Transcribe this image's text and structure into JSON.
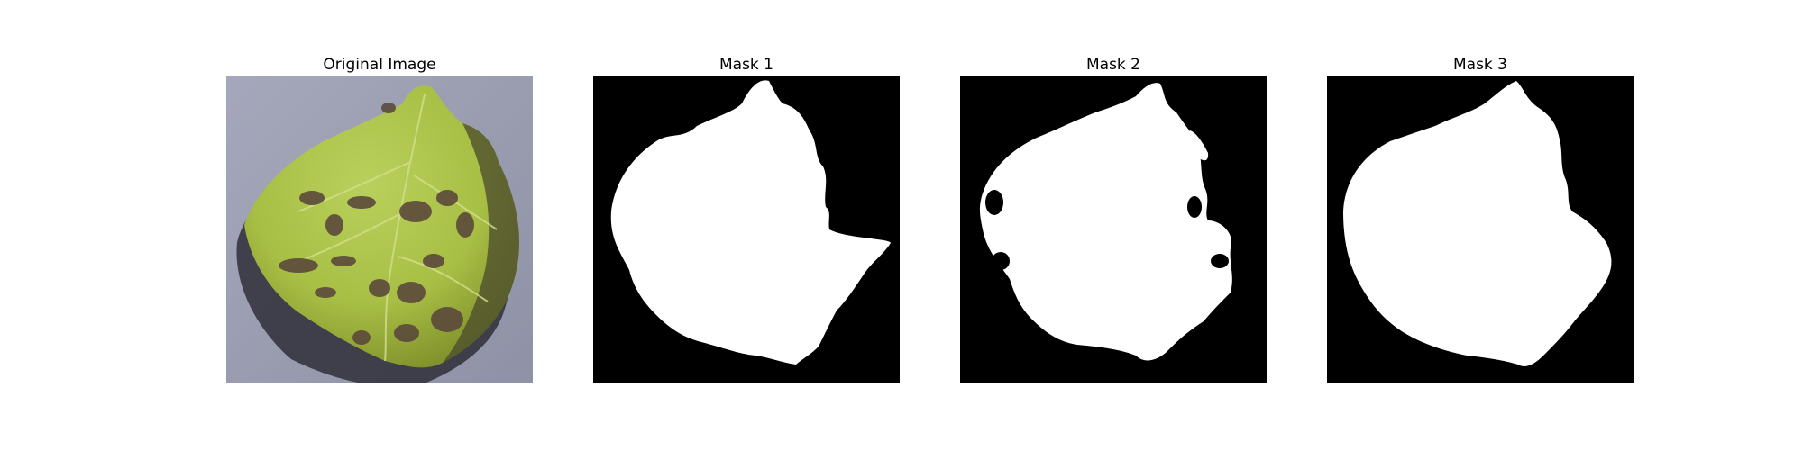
{
  "figure": {
    "panels": [
      {
        "title": "Original Image"
      },
      {
        "title": "Mask 1"
      },
      {
        "title": "Mask 2"
      },
      {
        "title": "Mask 3"
      }
    ]
  },
  "colors": {
    "background_photo": "#9fa0b4",
    "leaf_light": "#b7cc55",
    "leaf_mid": "#9fb43c",
    "leaf_edge": "#6c7a26",
    "lesion": "#5a4a3a",
    "shadow": "#3a3a46",
    "mask_bg": "#000000",
    "mask_fg": "#ffffff"
  }
}
